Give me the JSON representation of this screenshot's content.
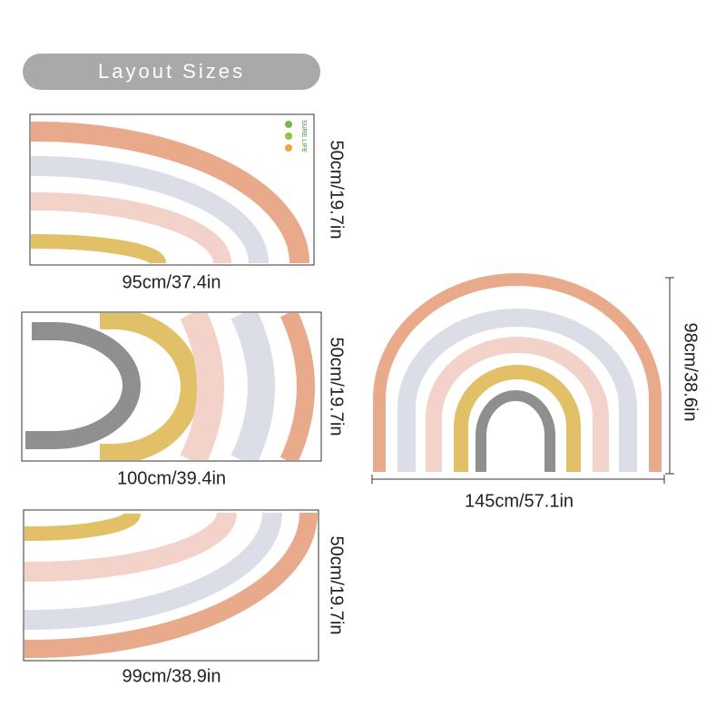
{
  "header": {
    "title": "Layout Sizes"
  },
  "logo": "SURE LIFE",
  "panels": [
    {
      "width": "95cm/37.4in",
      "height": "50cm/19.7in"
    },
    {
      "width": "100cm/39.4in",
      "height": "50cm/19.7in"
    },
    {
      "width": "99cm/38.9in",
      "height": "50cm/19.7in"
    }
  ],
  "assembled": {
    "width": "145cm/57.1in",
    "height": "98cm/38.6in"
  }
}
